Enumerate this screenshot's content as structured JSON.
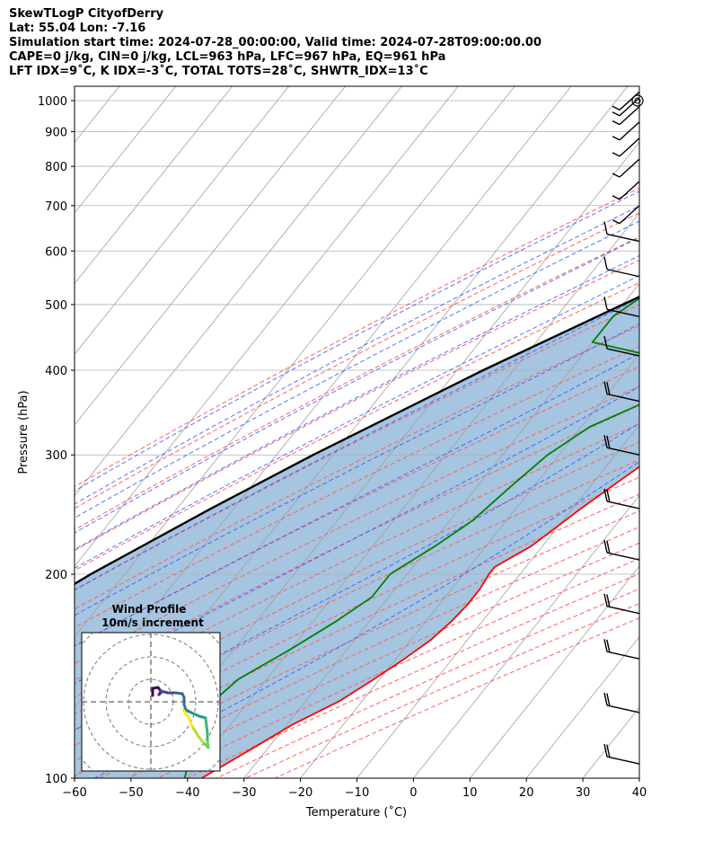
{
  "header": {
    "title": "SkewTLogP CityofDerry",
    "latlon": "Lat: 55.04   Lon: -7.16",
    "times": "Simulation start time: 2024-07-28_00:00:00, Valid time: 2024-07-28T09:00:00.00",
    "indices1": "CAPE=0 j/kg, CIN=0 j/kg, LCL=963 hPa, LFC=967 hPa, EQ=961 hPa",
    "indices2": "LFT IDX=9˚C, K IDX=-3˚C, TOTAL TOTS=28˚C, SHWTR_IDX=13˚C"
  },
  "chart_data": {
    "type": "line",
    "chart_kind": "skew-T log-P diagram",
    "xlabel": "Temperature (˚C)",
    "ylabel": "Pressure (hPa)",
    "xlim": [
      -60,
      40
    ],
    "ylim": [
      1050,
      100
    ],
    "y_scale": "log",
    "x_ticks": [
      -60,
      -50,
      -40,
      -30,
      -20,
      -10,
      0,
      10,
      20,
      30,
      40
    ],
    "x_tick_labels": [
      "−60",
      "−50",
      "−40",
      "−30",
      "−20",
      "−10",
      "0",
      "10",
      "20",
      "30",
      "40"
    ],
    "y_ticks": [
      1000,
      900,
      800,
      700,
      600,
      500,
      400,
      300,
      200,
      100
    ],
    "y_tick_labels": [
      "1000",
      "900",
      "800",
      "700",
      "600",
      "500",
      "400",
      "300",
      "200",
      "100"
    ],
    "grid": true,
    "series": [
      {
        "role": "temperature",
        "color": "#ff0000",
        "points": [
          [
            1015,
            12.8
          ],
          [
            1000,
            12.3
          ],
          [
            950,
            12.8
          ],
          [
            900,
            14.2
          ],
          [
            850,
            15.6
          ],
          [
            800,
            16.6
          ],
          [
            750,
            16.7
          ],
          [
            700,
            16.2
          ],
          [
            650,
            15.3
          ],
          [
            600,
            14.5
          ],
          [
            550,
            13.0
          ],
          [
            500,
            10.8
          ],
          [
            450,
            8.0
          ],
          [
            420,
            6.0
          ],
          [
            400,
            4.5
          ],
          [
            380,
            3.3
          ],
          [
            360,
            2.3
          ],
          [
            340,
            1.3
          ],
          [
            300,
            -2.8
          ],
          [
            280,
            -5.0
          ],
          [
            250,
            -8.5
          ],
          [
            220,
            -12.0
          ],
          [
            205,
            -15.5
          ],
          [
            200,
            -15.5
          ],
          [
            190,
            -15.0
          ],
          [
            180,
            -15.0
          ],
          [
            170,
            -15.5
          ],
          [
            160,
            -16.5
          ],
          [
            150,
            -18.5
          ],
          [
            140,
            -21.0
          ],
          [
            130,
            -24.0
          ],
          [
            120,
            -29.0
          ],
          [
            110,
            -33.0
          ],
          [
            100,
            -37.5
          ]
        ]
      },
      {
        "role": "dewpoint",
        "color": "#008000",
        "points": [
          [
            1015,
            12.5
          ],
          [
            1000,
            12.1
          ],
          [
            950,
            11.0
          ],
          [
            900,
            7.0
          ],
          [
            870,
            1.0
          ],
          [
            830,
            -4.0
          ],
          [
            790,
            -6.0
          ],
          [
            760,
            -6.0
          ],
          [
            720,
            -6.0
          ],
          [
            680,
            -7.5
          ],
          [
            590,
            -23.0
          ],
          [
            480,
            -30.0
          ],
          [
            440,
            -30.0
          ],
          [
            420,
            -17.5
          ],
          [
            400,
            -12.0
          ],
          [
            380,
            -10.0
          ],
          [
            355,
            -13.0
          ],
          [
            330,
            -18.5
          ],
          [
            300,
            -22.0
          ],
          [
            270,
            -24.0
          ],
          [
            240,
            -26.0
          ],
          [
            220,
            -29.0
          ],
          [
            205,
            -32.0
          ],
          [
            200,
            -33.0
          ],
          [
            185,
            -33.0
          ],
          [
            170,
            -36.0
          ],
          [
            155,
            -40.0
          ],
          [
            140,
            -45.0
          ],
          [
            125,
            -47.0
          ],
          [
            100,
            -40.5
          ]
        ]
      },
      {
        "role": "parcel-profile",
        "color": "#000000",
        "points": [
          [
            1015,
            12.8
          ],
          [
            1000,
            12.2
          ],
          [
            963,
            11.5
          ],
          [
            900,
            7.9
          ],
          [
            850,
            4.7
          ],
          [
            800,
            1.2
          ],
          [
            700,
            -7.2
          ],
          [
            600,
            -17.2
          ],
          [
            500,
            -30.0
          ],
          [
            400,
            -45.4
          ],
          [
            300,
            -63.5
          ],
          [
            250,
            -74.0
          ],
          [
            200,
            -86.0
          ],
          [
            150,
            -99.0
          ],
          [
            100,
            -116.0
          ]
        ]
      }
    ],
    "wind_barbs": {
      "pressures": [
        1030,
        1010,
        980,
        930,
        880,
        820,
        760,
        700,
        620,
        550,
        480,
        420,
        360,
        300,
        250,
        210,
        175,
        150,
        125,
        105
      ]
    },
    "hodograph": {
      "title": "Wind Profile",
      "subtitle": "10m/s increment",
      "ring_interval": 10,
      "colormap": "viridis"
    }
  }
}
